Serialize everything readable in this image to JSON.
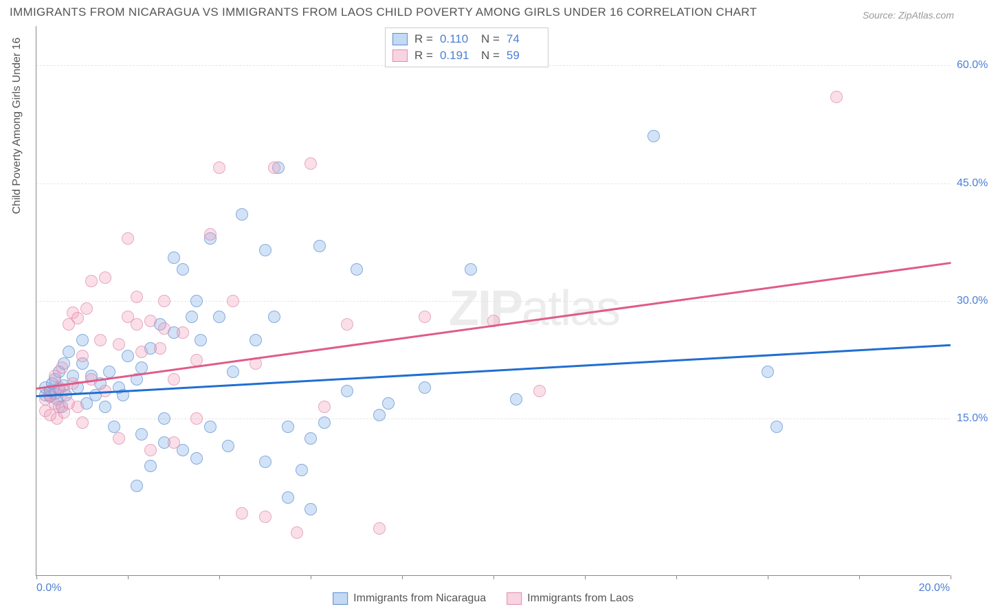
{
  "title": "IMMIGRANTS FROM NICARAGUA VS IMMIGRANTS FROM LAOS CHILD POVERTY AMONG GIRLS UNDER 16 CORRELATION CHART",
  "source": "Source: ZipAtlas.com",
  "yaxis_title": "Child Poverty Among Girls Under 16",
  "watermark_bold": "ZIP",
  "watermark_rest": "atlas",
  "chart": {
    "type": "scatter",
    "xlim": [
      0,
      20
    ],
    "ylim": [
      -5,
      65
    ],
    "x_ticks_pct": [
      0,
      2,
      4,
      6,
      8,
      10,
      12,
      14,
      16,
      18,
      20
    ],
    "x_labels": [
      {
        "pct": 0,
        "text": "0.0%",
        "cls": "xlabel-left"
      },
      {
        "pct": 20,
        "text": "20.0%",
        "cls": "xlabel-right-end"
      }
    ],
    "y_gridlines": [
      {
        "val": 15,
        "label": "15.0%"
      },
      {
        "val": 30,
        "label": "30.0%"
      },
      {
        "val": 45,
        "label": "45.0%"
      },
      {
        "val": 60,
        "label": "60.0%"
      }
    ],
    "background_color": "#ffffff",
    "grid_color": "#e5e5e5",
    "axis_color": "#888888"
  },
  "series": [
    {
      "name": "Immigrants from Nicaragua",
      "fill": "rgba(125,170,230,0.45)",
      "stroke": "#5a8ed0",
      "trend_color": "#1f6fd0",
      "R": "0.110",
      "N": "74",
      "trend": {
        "x1": 0,
        "y1": 18,
        "x2": 20,
        "y2": 24.5
      },
      "points": [
        [
          0.2,
          18
        ],
        [
          0.2,
          19
        ],
        [
          0.3,
          17.8
        ],
        [
          0.3,
          18.5
        ],
        [
          0.35,
          19.5
        ],
        [
          0.4,
          18.2
        ],
        [
          0.4,
          20
        ],
        [
          0.45,
          17.5
        ],
        [
          0.5,
          18.8
        ],
        [
          0.5,
          21
        ],
        [
          0.55,
          16.5
        ],
        [
          0.6,
          19.2
        ],
        [
          0.6,
          22
        ],
        [
          0.65,
          18
        ],
        [
          0.7,
          23.5
        ],
        [
          0.8,
          20.5
        ],
        [
          0.9,
          19
        ],
        [
          1.0,
          22
        ],
        [
          1.0,
          25
        ],
        [
          1.1,
          17
        ],
        [
          1.2,
          20.5
        ],
        [
          1.3,
          18
        ],
        [
          1.4,
          19.5
        ],
        [
          1.5,
          16.5
        ],
        [
          1.6,
          21
        ],
        [
          1.7,
          14
        ],
        [
          1.8,
          19
        ],
        [
          1.9,
          18
        ],
        [
          2.0,
          23
        ],
        [
          2.2,
          6.5
        ],
        [
          2.2,
          20
        ],
        [
          2.3,
          13
        ],
        [
          2.3,
          21.5
        ],
        [
          2.5,
          9
        ],
        [
          2.5,
          24
        ],
        [
          2.7,
          27
        ],
        [
          2.8,
          12
        ],
        [
          2.8,
          15
        ],
        [
          3.0,
          26
        ],
        [
          3.0,
          35.5
        ],
        [
          3.2,
          11
        ],
        [
          3.2,
          34
        ],
        [
          3.4,
          28
        ],
        [
          3.5,
          10
        ],
        [
          3.5,
          30
        ],
        [
          3.6,
          25
        ],
        [
          3.8,
          14
        ],
        [
          3.8,
          38
        ],
        [
          4.0,
          28
        ],
        [
          4.2,
          11.5
        ],
        [
          4.3,
          21
        ],
        [
          4.5,
          41
        ],
        [
          4.8,
          25
        ],
        [
          5.0,
          9.5
        ],
        [
          5.0,
          36.5
        ],
        [
          5.2,
          28
        ],
        [
          5.3,
          47
        ],
        [
          5.5,
          5
        ],
        [
          5.5,
          14
        ],
        [
          5.8,
          8.5
        ],
        [
          6.0,
          3.5
        ],
        [
          6.0,
          12.5
        ],
        [
          6.2,
          37
        ],
        [
          6.3,
          14.5
        ],
        [
          6.8,
          18.5
        ],
        [
          7.0,
          34
        ],
        [
          7.5,
          15.5
        ],
        [
          7.7,
          17
        ],
        [
          8.5,
          19
        ],
        [
          9.5,
          34
        ],
        [
          10.5,
          17.5
        ],
        [
          13.5,
          51
        ],
        [
          16.0,
          21
        ],
        [
          16.2,
          14
        ]
      ]
    },
    {
      "name": "Immigrants from Laos",
      "fill": "rgba(240,160,190,0.45)",
      "stroke": "#e089a8",
      "trend_color": "#e05a8a",
      "R": "0.191",
      "N": "59",
      "trend": {
        "x1": 0,
        "y1": 19,
        "x2": 20,
        "y2": 35
      },
      "points": [
        [
          0.2,
          16
        ],
        [
          0.2,
          17.5
        ],
        [
          0.3,
          15.5
        ],
        [
          0.3,
          18
        ],
        [
          0.4,
          17
        ],
        [
          0.4,
          20.5
        ],
        [
          0.45,
          15
        ],
        [
          0.5,
          16.5
        ],
        [
          0.5,
          19
        ],
        [
          0.55,
          21.5
        ],
        [
          0.6,
          15.8
        ],
        [
          0.6,
          18.5
        ],
        [
          0.7,
          17
        ],
        [
          0.7,
          27
        ],
        [
          0.8,
          19.5
        ],
        [
          0.8,
          28.5
        ],
        [
          0.9,
          16.5
        ],
        [
          0.9,
          27.8
        ],
        [
          1.0,
          14.5
        ],
        [
          1.0,
          23
        ],
        [
          1.1,
          29
        ],
        [
          1.2,
          20
        ],
        [
          1.2,
          32.5
        ],
        [
          1.4,
          25
        ],
        [
          1.5,
          18.5
        ],
        [
          1.5,
          33
        ],
        [
          1.8,
          24.5
        ],
        [
          1.8,
          12.5
        ],
        [
          2.0,
          28
        ],
        [
          2.0,
          38
        ],
        [
          2.2,
          27
        ],
        [
          2.2,
          30.5
        ],
        [
          2.3,
          23.5
        ],
        [
          2.5,
          11
        ],
        [
          2.5,
          27.5
        ],
        [
          2.7,
          24
        ],
        [
          2.8,
          26.5
        ],
        [
          2.8,
          30
        ],
        [
          3.0,
          20
        ],
        [
          3.0,
          12
        ],
        [
          3.2,
          26
        ],
        [
          3.5,
          15
        ],
        [
          3.5,
          22.5
        ],
        [
          3.8,
          38.5
        ],
        [
          4.0,
          47
        ],
        [
          4.3,
          30
        ],
        [
          4.5,
          3
        ],
        [
          4.8,
          22
        ],
        [
          5.0,
          2.5
        ],
        [
          5.2,
          47
        ],
        [
          5.7,
          0.5
        ],
        [
          6.0,
          47.5
        ],
        [
          6.3,
          16.5
        ],
        [
          6.8,
          27
        ],
        [
          7.5,
          1
        ],
        [
          8.5,
          28
        ],
        [
          10.0,
          27.5
        ],
        [
          11.0,
          18.5
        ],
        [
          17.5,
          56
        ]
      ]
    }
  ],
  "legend_top": {
    "R_label": "R =",
    "N_label": "N ="
  }
}
